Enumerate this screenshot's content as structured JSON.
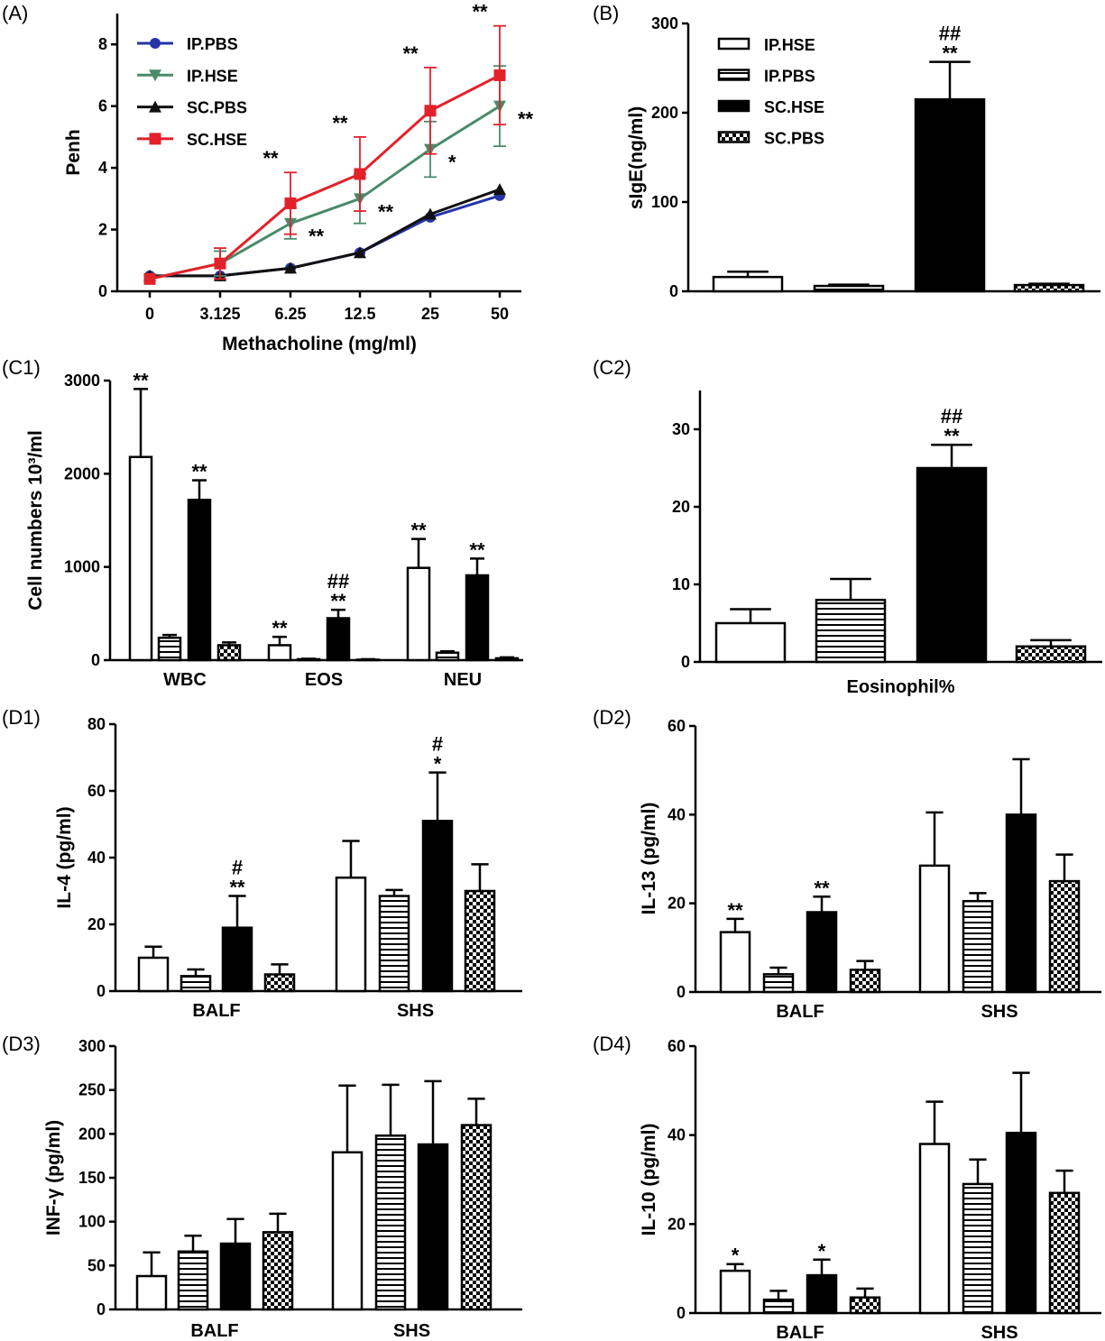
{
  "colors": {
    "IP.PBS": "#2634a8",
    "IP.HSE": "#4a8a6b",
    "SC.PBS": "#111111",
    "SC.HSE": "#e3212b"
  },
  "groups": [
    "IP.HSE",
    "IP.PBS",
    "SC.HSE",
    "SC.PBS"
  ],
  "chart_data": [
    {
      "id": "A",
      "panel_label": "(A)",
      "type": "line",
      "xlabel": "Methacholine (mg/ml)",
      "ylabel": "Penh",
      "categories": [
        "0",
        "3.125",
        "6.25",
        "12.5",
        "25",
        "50"
      ],
      "ylim": [
        0,
        9
      ],
      "yticks": [
        0,
        2,
        4,
        6,
        8
      ],
      "legend_position": "top-left",
      "series": [
        {
          "name": "IP.PBS",
          "marker": "circle",
          "values": [
            0.5,
            0.5,
            0.75,
            1.25,
            2.4,
            3.1
          ],
          "err": [
            0.05,
            0.05,
            0.1,
            0.1,
            0.1,
            0.15
          ]
        },
        {
          "name": "IP.HSE",
          "marker": "triangle-down",
          "values": [
            0.4,
            0.9,
            2.2,
            3.0,
            4.6,
            6.0
          ],
          "err": [
            0.1,
            0.4,
            0.5,
            0.8,
            0.9,
            1.3
          ]
        },
        {
          "name": "SC.PBS",
          "marker": "triangle-up",
          "values": [
            0.5,
            0.5,
            0.75,
            1.25,
            2.5,
            3.3
          ],
          "err": [
            0.05,
            0.05,
            0.1,
            0.1,
            0.1,
            0.15
          ]
        },
        {
          "name": "SC.HSE",
          "marker": "square",
          "values": [
            0.4,
            0.9,
            2.85,
            3.8,
            5.85,
            7.0
          ],
          "err": [
            0.1,
            0.5,
            1.0,
            1.2,
            1.4,
            1.6
          ]
        }
      ],
      "annotations": [
        {
          "text": "**",
          "series": "SC.HSE",
          "index": 2
        },
        {
          "text": "**",
          "series": "SC.HSE",
          "index": 3
        },
        {
          "text": "**",
          "series": "SC.HSE",
          "index": 4
        },
        {
          "text": "**",
          "series": "SC.HSE",
          "index": 5
        },
        {
          "text": "**",
          "series": "IP.HSE",
          "index": 2
        },
        {
          "text": "**",
          "series": "IP.HSE",
          "index": 3
        },
        {
          "text": "*",
          "series": "IP.HSE",
          "index": 4
        },
        {
          "text": "**",
          "series": "IP.HSE",
          "index": 5
        }
      ]
    },
    {
      "id": "B",
      "panel_label": "(B)",
      "type": "bar",
      "ylabel": "sIgE(ng/ml)",
      "ylim": [
        0,
        300
      ],
      "yticks": [
        0,
        100,
        200,
        300
      ],
      "legend_position": "top-left",
      "groups": [
        {
          "label": "",
          "values": [
            16,
            6,
            215,
            7
          ],
          "err": [
            6,
            1.5,
            42,
            1.5
          ],
          "annot": [
            "",
            "",
            "**|##",
            ""
          ]
        }
      ]
    },
    {
      "id": "C1",
      "panel_label": "(C1)",
      "type": "bar",
      "ylabel": "Cell numbers 10³/ml",
      "ylim": [
        0,
        3000
      ],
      "yticks": [
        0,
        1000,
        2000,
        3000
      ],
      "groups": [
        {
          "label": "WBC",
          "values": [
            2180,
            240,
            1720,
            160
          ],
          "err": [
            730,
            30,
            210,
            30
          ],
          "annot": [
            "**",
            "",
            "**",
            ""
          ]
        },
        {
          "label": "EOS",
          "values": [
            160,
            10,
            450,
            5
          ],
          "err": [
            90,
            5,
            90,
            5
          ],
          "annot": [
            "**",
            "",
            "**|##",
            ""
          ]
        },
        {
          "label": "NEU",
          "values": [
            990,
            80,
            910,
            20
          ],
          "err": [
            310,
            15,
            180,
            10
          ],
          "annot": [
            "**",
            "",
            "**",
            ""
          ]
        }
      ]
    },
    {
      "id": "C2",
      "panel_label": "(C2)",
      "type": "bar",
      "ylim": [
        0,
        35
      ],
      "yticks": [
        0,
        10,
        20,
        30
      ],
      "groups": [
        {
          "label": "Eosinophil%",
          "values": [
            5,
            8,
            25,
            2
          ],
          "err": [
            1.8,
            2.7,
            3,
            0.8
          ],
          "annot": [
            "",
            "",
            "**|##",
            ""
          ]
        }
      ]
    },
    {
      "id": "D1",
      "panel_label": "(D1)",
      "type": "bar",
      "ylabel": "IL-4 (pg/ml)",
      "ylim": [
        0,
        80
      ],
      "yticks": [
        0,
        20,
        40,
        60,
        80
      ],
      "groups": [
        {
          "label": "BALF",
          "values": [
            10,
            4.5,
            19,
            5
          ],
          "err": [
            3.3,
            2,
            9.5,
            3
          ],
          "annot": [
            "",
            "",
            "**|#",
            ""
          ]
        },
        {
          "label": "SHS",
          "values": [
            34,
            28.5,
            51,
            30
          ],
          "err": [
            11,
            1.8,
            14.5,
            8
          ],
          "annot": [
            "",
            "",
            "*|#",
            ""
          ]
        }
      ]
    },
    {
      "id": "D2",
      "panel_label": "(D2)",
      "type": "bar",
      "ylabel": "IL-13 (pg/ml)",
      "ylim": [
        0,
        60
      ],
      "yticks": [
        0,
        20,
        40,
        60
      ],
      "groups": [
        {
          "label": "BALF",
          "values": [
            13.5,
            4,
            18,
            5
          ],
          "err": [
            3,
            1.5,
            3.5,
            2
          ],
          "annot": [
            "**",
            "",
            "**",
            ""
          ]
        },
        {
          "label": "SHS",
          "values": [
            28.5,
            20.5,
            40,
            25
          ],
          "err": [
            12,
            1.8,
            12.5,
            6
          ],
          "annot": [
            "",
            "",
            "",
            ""
          ]
        }
      ]
    },
    {
      "id": "D3",
      "panel_label": "(D3)",
      "type": "bar",
      "ylabel": "INF-γ (pg/ml)",
      "ylim": [
        0,
        300
      ],
      "yticks": [
        0,
        50,
        100,
        150,
        200,
        250,
        300
      ],
      "groups": [
        {
          "label": "BALF",
          "values": [
            38,
            66,
            75,
            88
          ],
          "err": [
            27,
            18,
            28,
            21
          ],
          "annot": [
            "",
            "",
            "",
            ""
          ]
        },
        {
          "label": "SHS",
          "values": [
            179,
            198,
            188,
            210
          ],
          "err": [
            76,
            58,
            72,
            30
          ],
          "annot": [
            "",
            "",
            "",
            ""
          ]
        }
      ]
    },
    {
      "id": "D4",
      "panel_label": "(D4)",
      "type": "bar",
      "ylabel": "IL-10 (pg/ml)",
      "ylim": [
        0,
        60
      ],
      "yticks": [
        0,
        20,
        40,
        60
      ],
      "groups": [
        {
          "label": "BALF",
          "values": [
            9.5,
            3,
            8.5,
            3.5
          ],
          "err": [
            1.5,
            2,
            3.5,
            2
          ],
          "annot": [
            "*",
            "",
            "*",
            ""
          ]
        },
        {
          "label": "SHS",
          "values": [
            38,
            29,
            40.5,
            27
          ],
          "err": [
            9.5,
            5.5,
            13.5,
            5
          ],
          "annot": [
            "",
            "",
            "",
            ""
          ]
        }
      ]
    }
  ]
}
